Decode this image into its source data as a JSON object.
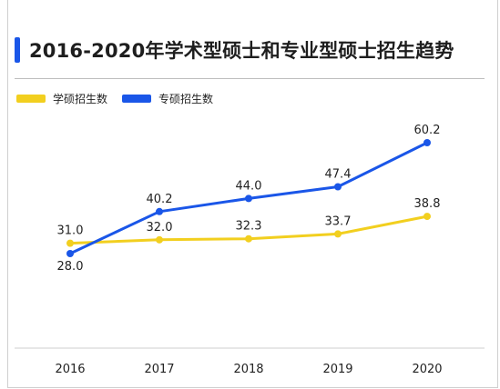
{
  "chart_data": {
    "type": "line",
    "title": "2016-2020年学术型硕士和专业型硕士招生趋势",
    "x": [
      "2016",
      "2017",
      "2018",
      "2019",
      "2020"
    ],
    "series": [
      {
        "name": "学硕招生数",
        "values": [
          31.0,
          32.0,
          32.3,
          33.7,
          38.8
        ],
        "color": "#f2cf1f"
      },
      {
        "name": "专硕招生数",
        "values": [
          28.0,
          40.2,
          44.0,
          47.4,
          60.2
        ],
        "color": "#1a56e8"
      }
    ],
    "value_labels": {
      "series0": [
        "31.0",
        "32.0",
        "32.3",
        "33.7",
        "38.8"
      ],
      "series1": [
        "28.0",
        "40.2",
        "44.0",
        "47.4",
        "60.2"
      ]
    },
    "ylim": [
      20,
      66
    ],
    "grid": false,
    "legend": "top-left",
    "accent_color": "#1a56e8"
  }
}
